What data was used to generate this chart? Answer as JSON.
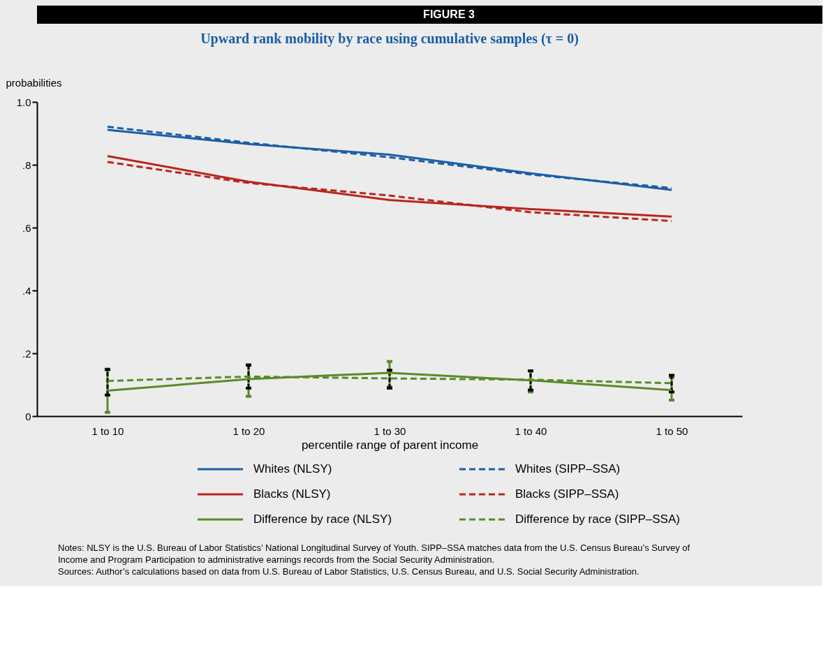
{
  "chart_data": {
    "type": "line",
    "title": "Upward rank mobility by race using cumulative samples (τ = 0)",
    "xlabel": "percentile range of parent income",
    "ylabel": "probabilities",
    "categories": [
      "1 to 10",
      "1 to 20",
      "1 to 30",
      "1 to 40",
      "1 to 50"
    ],
    "ylim": [
      0,
      1
    ],
    "yticks": [
      0,
      {
        "value": 0.2,
        "label": ".2"
      },
      {
        "value": 0.4,
        "label": ".4"
      },
      {
        "value": 0.6,
        "label": ".6"
      },
      {
        "value": 0.8,
        "label": ".8"
      },
      {
        "value": 1.0,
        "label": "1.0"
      }
    ],
    "grid": false,
    "legend": "bottom",
    "series": [
      {
        "name": "Whites (NLSY)",
        "color": "#1b5ea5",
        "line_style": "solid",
        "values": [
          0.911,
          0.866,
          0.832,
          0.773,
          0.72
        ]
      },
      {
        "name": "Whites (SIPP–SSA)",
        "color": "#1b5ea5",
        "line_style": "dashed",
        "values": [
          0.921,
          0.87,
          0.824,
          0.769,
          0.726
        ]
      },
      {
        "name": "Blacks (NLSY)",
        "color": "#b8261f",
        "line_style": "solid",
        "values": [
          0.828,
          0.746,
          0.688,
          0.659,
          0.635
        ]
      },
      {
        "name": "Blacks (SIPP–SSA)",
        "color": "#b8261f",
        "line_style": "dashed",
        "values": [
          0.809,
          0.742,
          0.702,
          0.649,
          0.621
        ]
      },
      {
        "name": "Difference by race (NLSY)",
        "color": "#5a8a28",
        "line_style": "solid",
        "values": [
          0.081,
          0.118,
          0.138,
          0.114,
          0.083
        ],
        "errors": [
          [
            0.012,
            0.15
          ],
          [
            0.063,
            0.164
          ],
          [
            0.093,
            0.174
          ],
          [
            0.077,
            0.144
          ],
          [
            0.051,
            0.124
          ]
        ]
      },
      {
        "name": "Difference by race (SIPP–SSA)",
        "color": "#5a8a28",
        "line_style": "dashed",
        "values": [
          0.112,
          0.126,
          0.12,
          0.116,
          0.105
        ],
        "errors": [
          [
            0.067,
            0.148
          ],
          [
            0.089,
            0.162
          ],
          [
            0.089,
            0.146
          ],
          [
            0.083,
            0.144
          ],
          [
            0.077,
            0.13
          ]
        ]
      }
    ],
    "annotations": [
      "FIGURE 3",
      "Notes: NLSY is the U.S. Bureau of Labor Statistics’ National Longitudinal Survey of Youth. SIPP–SSA matches data from the U.S. Census Bureau’s Survey of Income and Program Participation to administrative earnings records from the Social Security Administration.",
      "Sources: Author’s calculations based on data from U.S. Bureau of Labor Statistics, U.S. Census Bureau, and U.S. Social Security Administration."
    ]
  }
}
